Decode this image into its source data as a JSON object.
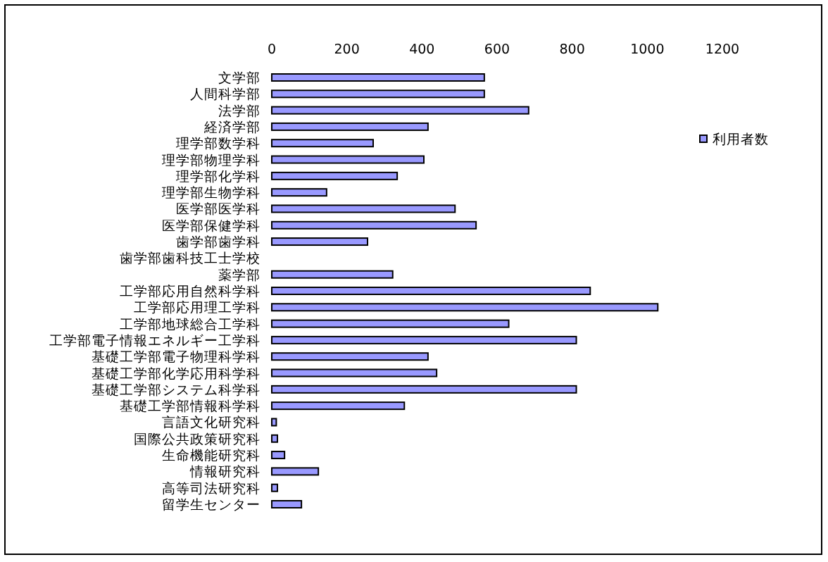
{
  "chart_data": {
    "type": "bar",
    "orientation": "horizontal",
    "categories": [
      "文学部",
      "人間科学部",
      "法学部",
      "経済学部",
      "理学部数学科",
      "理学部物理学科",
      "理学部化学科",
      "理学部生物学科",
      "医学部医学科",
      "医学部保健学科",
      "歯学部歯学科",
      "歯学部歯科技工士学校",
      "薬学部",
      "工学部応用自然科学科",
      "工学部応用理工学科",
      "工学部地球総合工学科",
      "工学部電子情報エネルギー工学科",
      "基礎工学部電子物理科学科",
      "基礎工学部化学応用科学科",
      "基礎工学部システム科学科",
      "基礎工学部情報科学科",
      "言語文化研究科",
      "国際公共政策研究科",
      "生命機能研究科",
      "情報研究科",
      "高等司法研究科",
      "留学生センター"
    ],
    "series": [
      {
        "name": "利用者数",
        "color": "#9999ff",
        "values": [
          566,
          566,
          684,
          416,
          270,
          405,
          334,
          146,
          488,
          544,
          255,
          null,
          322,
          848,
          1028,
          631,
          811,
          416,
          439,
          811,
          353,
          12,
          15,
          34,
          124,
          15,
          79
        ]
      }
    ],
    "xlim": [
      0,
      1200
    ],
    "xticks": [
      0,
      200,
      400,
      600,
      800,
      1000,
      1200
    ],
    "grid": false,
    "legend": "right"
  }
}
